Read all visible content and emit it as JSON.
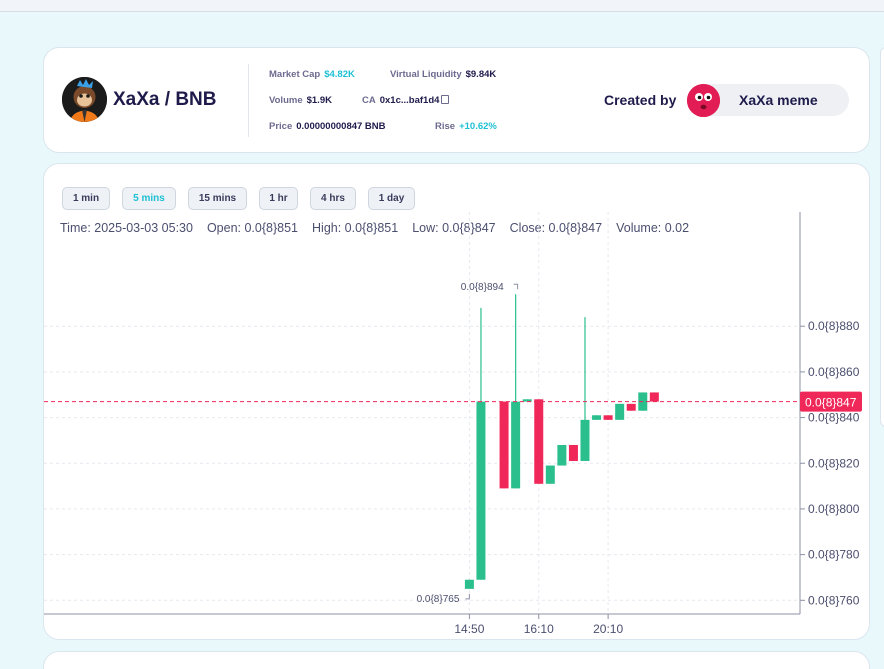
{
  "header": {
    "pair_title": "XaXa / BNB",
    "market_cap_label": "Market Cap",
    "market_cap": "$4.82K",
    "virtual_liquidity_label": "Virtual Liquidity",
    "virtual_liquidity": "$9.84K",
    "volume_label": "Volume",
    "volume": "$1.9K",
    "ca_label": "CA",
    "ca": "0x1c...baf1d4",
    "price_label": "Price",
    "price": "0.00000000847 BNB",
    "rise_label": "Rise",
    "rise": "+10.62%",
    "created_by_label": "Created by",
    "creator_name": "XaXa meme",
    "icons": [
      "monkey-avatar",
      "copy-icon",
      "creator-avatar"
    ]
  },
  "timeframes": [
    {
      "label": "1 min",
      "active": false
    },
    {
      "label": "5 mins",
      "active": true
    },
    {
      "label": "15 mins",
      "active": false
    },
    {
      "label": "1 hr",
      "active": false
    },
    {
      "label": "4 hrs",
      "active": false
    },
    {
      "label": "1 day",
      "active": false
    }
  ],
  "ohlc": {
    "time": "Time: 2025-03-03 05:30",
    "open": "Open: 0.0{8}851",
    "high": "High: 0.0{8}851",
    "low": "Low: 0.0{8}847",
    "close": "Close: 0.0{8}847",
    "volume": "Volume: 0.02"
  },
  "colors": {
    "up": "#2bbf8e",
    "down": "#f0285a",
    "accent": "#1ec0d4",
    "price_line": "#f0285a"
  },
  "chart_data": {
    "type": "candlestick",
    "y_tick_labels": [
      "0.0{8}880",
      "0.0{8}860",
      "0.0{8}840",
      "0.0{8}820",
      "0.0{8}800",
      "0.0{8}780",
      "0.0{8}760"
    ],
    "y_ticks": [
      880,
      860,
      840,
      820,
      800,
      780,
      760
    ],
    "y_unit_note": "values in 1e-11 BNB (0.0{8}xyz = 0.00000000xyz)",
    "ylim": [
      754,
      930
    ],
    "x_tick_labels": [
      "14:50",
      "16:10",
      "20:10"
    ],
    "x_ticks": [
      5,
      8,
      11
    ],
    "xlim": [
      -13.4,
      19.3
    ],
    "current_price_label": "0.0{8}847",
    "current_price": 847,
    "max_label": "0.0{8}894",
    "max_value": 894,
    "min_label": "0.0{8}765",
    "min_value": 765,
    "candles": [
      {
        "x": 5.0,
        "open": 765,
        "high": 769,
        "low": 765,
        "close": 769
      },
      {
        "x": 5.5,
        "open": 769,
        "high": 888,
        "low": 769,
        "close": 847
      },
      {
        "x": 6.5,
        "open": 847,
        "high": 847,
        "low": 809,
        "close": 809
      },
      {
        "x": 7.0,
        "open": 809,
        "high": 894,
        "low": 809,
        "close": 847
      },
      {
        "x": 7.5,
        "open": 847,
        "high": 848,
        "low": 847,
        "close": 848
      },
      {
        "x": 8.0,
        "open": 848,
        "high": 848,
        "low": 811,
        "close": 811
      },
      {
        "x": 8.5,
        "open": 811,
        "high": 819,
        "low": 811,
        "close": 819
      },
      {
        "x": 9.0,
        "open": 819,
        "high": 828,
        "low": 819,
        "close": 828
      },
      {
        "x": 9.5,
        "open": 828,
        "high": 828,
        "low": 821,
        "close": 821
      },
      {
        "x": 10.0,
        "open": 821,
        "high": 884,
        "low": 821,
        "close": 839
      },
      {
        "x": 10.5,
        "open": 839,
        "high": 841,
        "low": 839,
        "close": 841
      },
      {
        "x": 11.0,
        "open": 841,
        "high": 841,
        "low": 839,
        "close": 839
      },
      {
        "x": 11.5,
        "open": 839,
        "high": 846,
        "low": 839,
        "close": 846
      },
      {
        "x": 12.0,
        "open": 846,
        "high": 846,
        "low": 843,
        "close": 843
      },
      {
        "x": 12.5,
        "open": 843,
        "high": 851,
        "low": 843,
        "close": 851
      },
      {
        "x": 13.0,
        "open": 851,
        "high": 851,
        "low": 847,
        "close": 847
      }
    ]
  }
}
